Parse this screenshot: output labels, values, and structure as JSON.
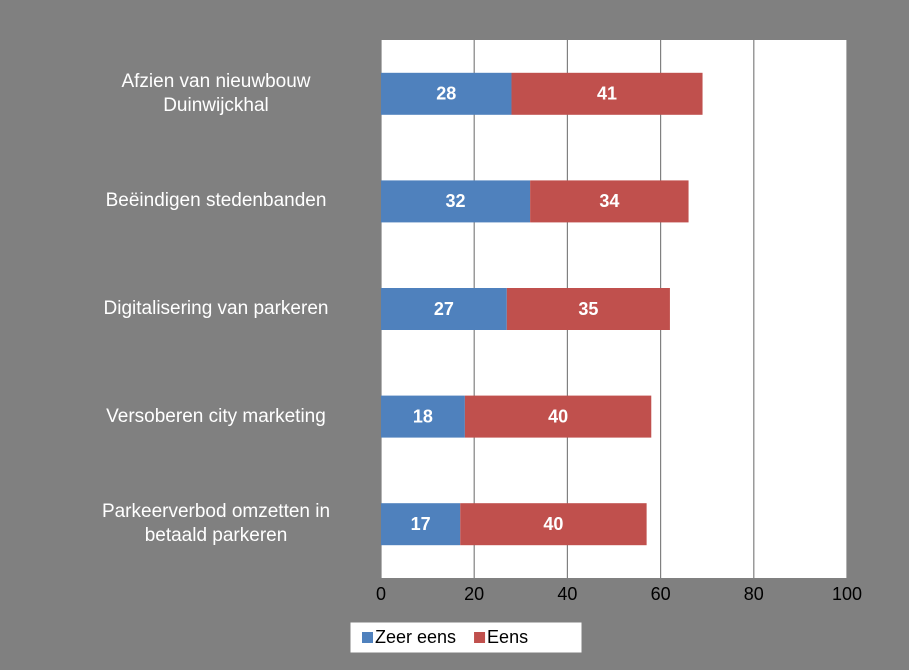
{
  "chart_data": {
    "type": "stacked_barh",
    "categories": [
      "Afzien van nieuwbouw Duinwijckhal",
      "Beëindigen stedenbanden",
      "Digitalisering van parkeren",
      "Versoberen city marketing",
      "Parkeerverbod omzetten in betaald parkeren"
    ],
    "series": [
      {
        "name": "Zeer eens",
        "color": "#4f81bd",
        "values": [
          28,
          32,
          27,
          18,
          17
        ]
      },
      {
        "name": "Eens",
        "color": "#c0504d",
        "values": [
          41,
          34,
          35,
          40,
          40
        ]
      }
    ],
    "xlim": [
      0,
      100
    ],
    "xticks": [
      0,
      20,
      40,
      60,
      80,
      100
    ],
    "grid": true,
    "legend": "bottom"
  }
}
